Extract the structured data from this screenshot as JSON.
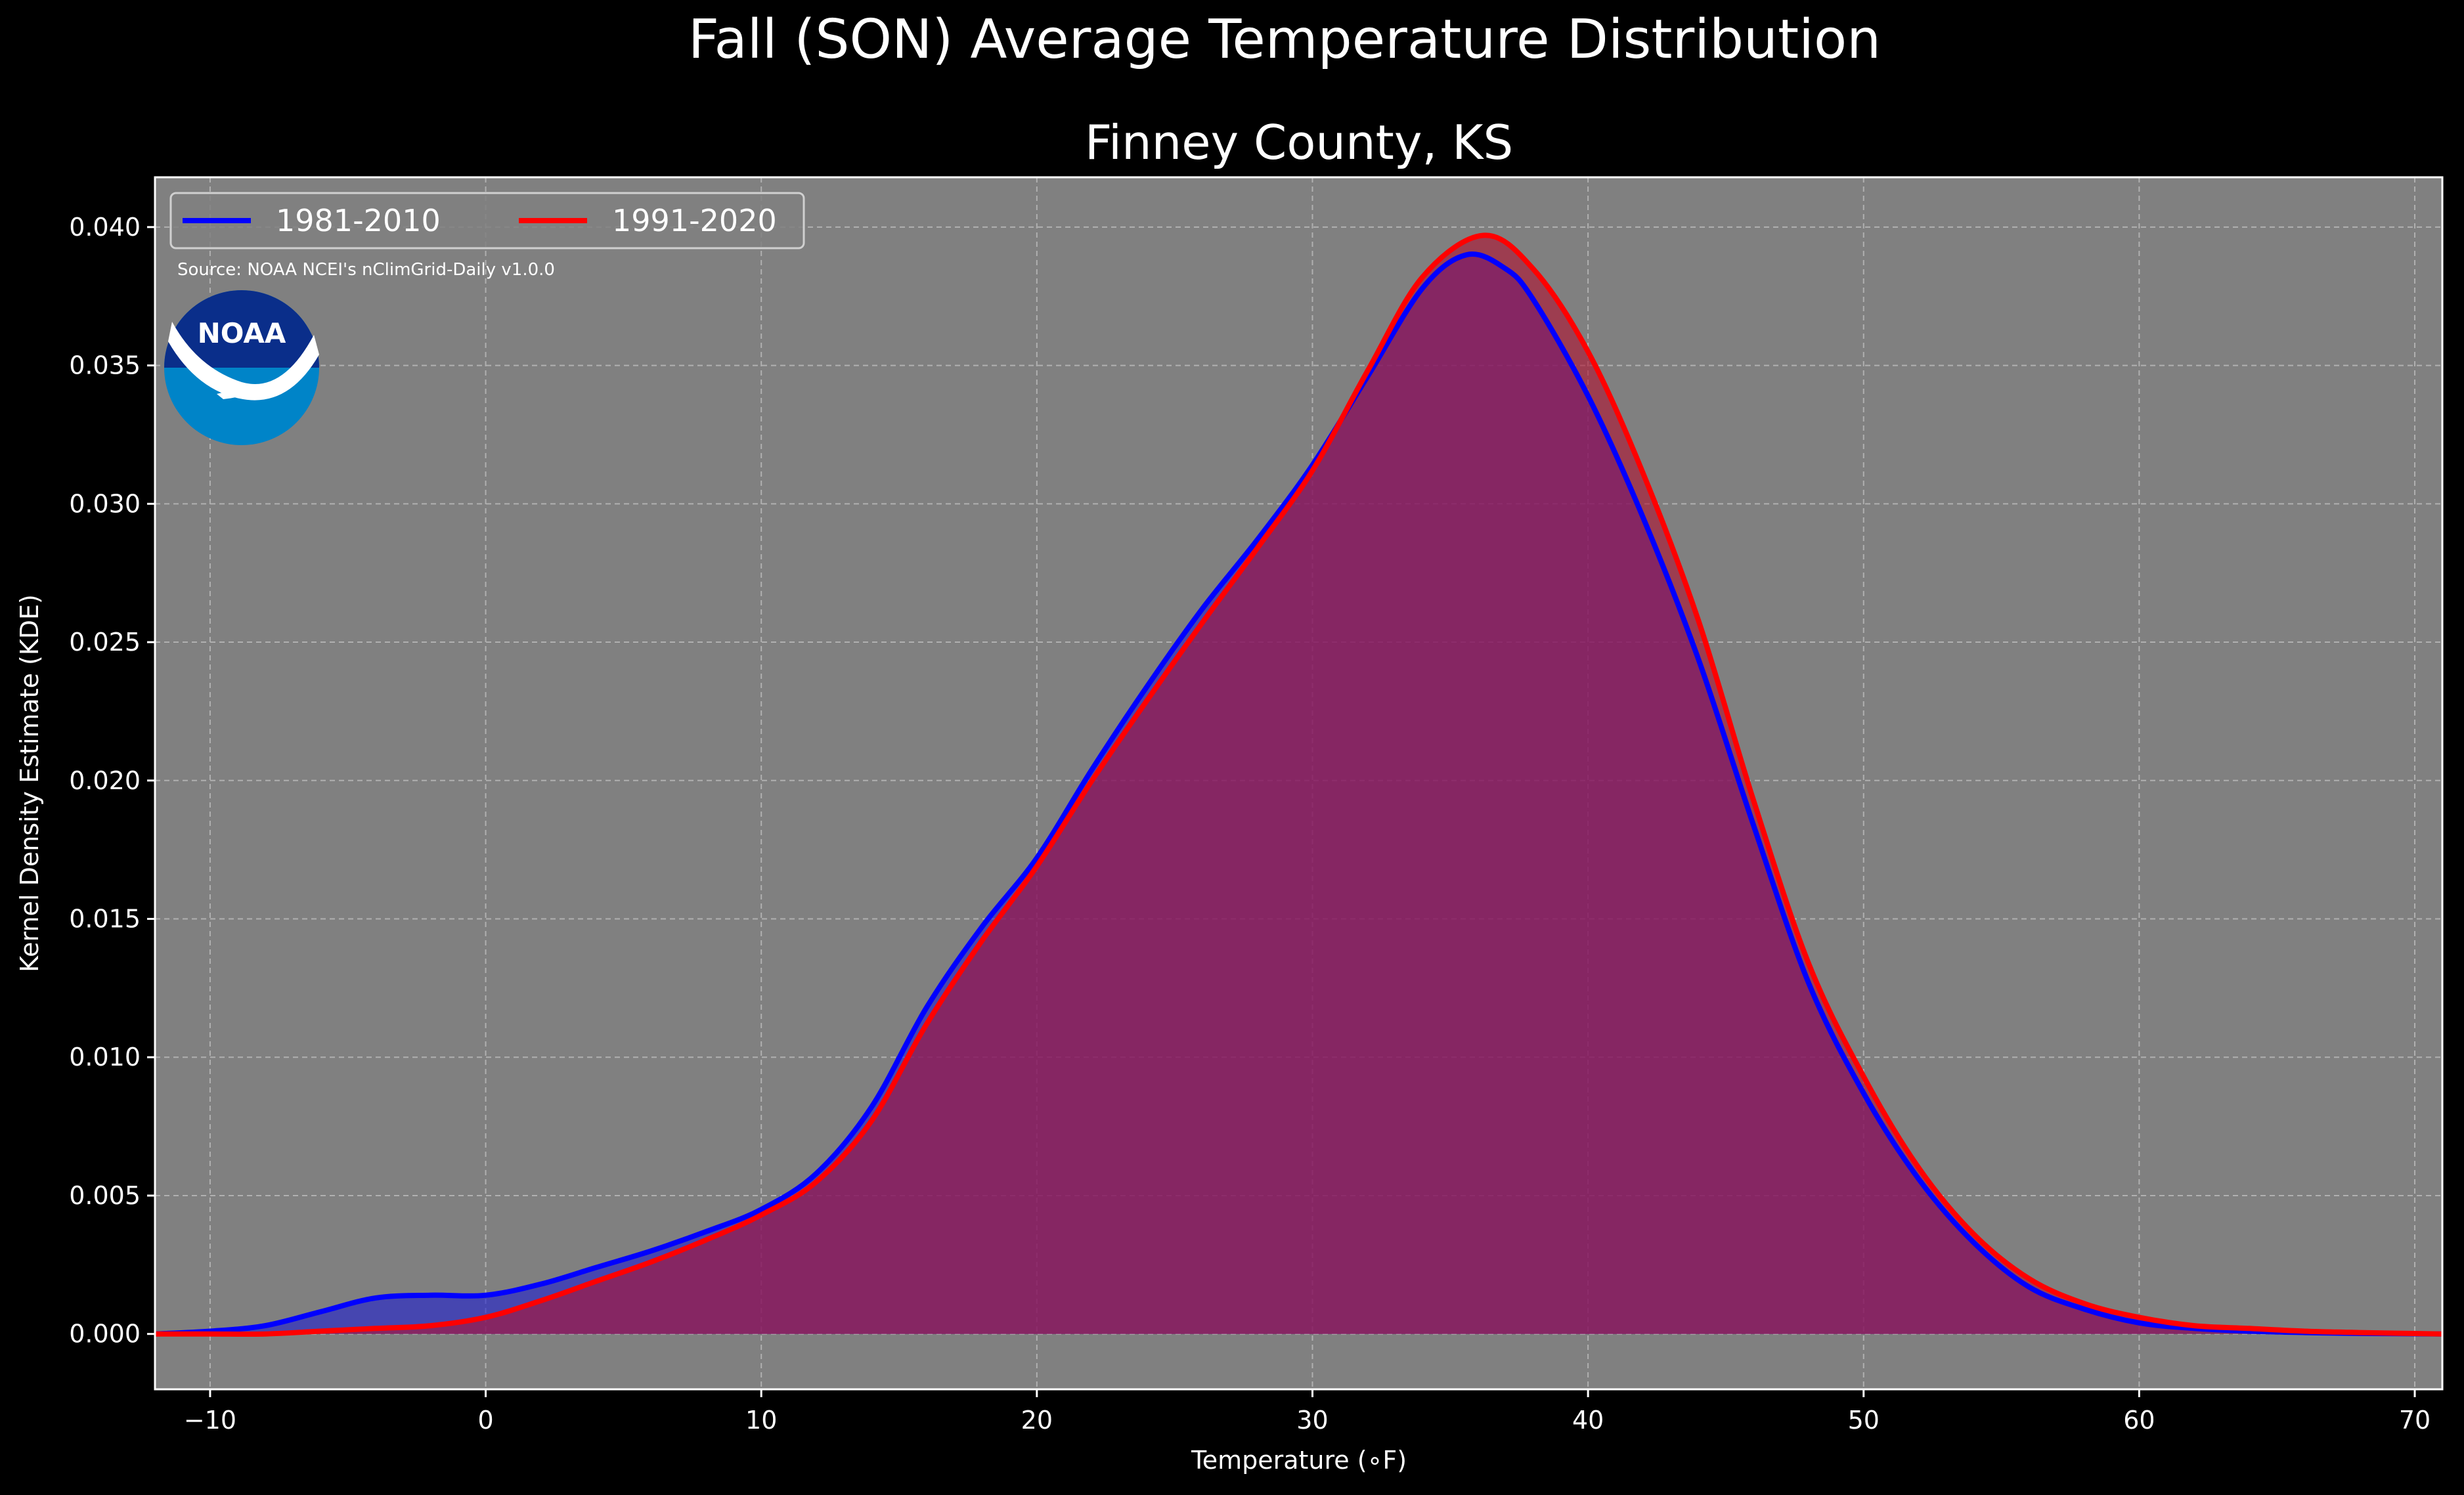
{
  "chart_data": {
    "type": "area",
    "title": "Fall (SON) Average Temperature Distribution",
    "subtitle": "Finney County, KS",
    "xlabel": "Temperature (∘F)",
    "ylabel": "Kernel Density Estimate (KDE)",
    "xlim": [
      -12,
      71
    ],
    "ylim": [
      -0.002,
      0.0418
    ],
    "x_ticks": [
      -10,
      0,
      10,
      20,
      30,
      40,
      50,
      60,
      70
    ],
    "x_tick_labels": [
      "−10",
      "0",
      "10",
      "20",
      "30",
      "40",
      "50",
      "60",
      "70"
    ],
    "y_ticks": [
      0.0,
      0.005,
      0.01,
      0.015,
      0.02,
      0.025,
      0.03,
      0.035,
      0.04
    ],
    "y_tick_labels": [
      "0.000",
      "0.005",
      "0.010",
      "0.015",
      "0.020",
      "0.025",
      "0.030",
      "0.035",
      "0.040"
    ],
    "grid": true,
    "legend_position": "top-left",
    "background_color": "#808080",
    "annotation": "Source: NOAA NCEI's nClimGrid-Daily v1.0.0",
    "logo_text": "NOAA",
    "series": [
      {
        "name": "1981-2010",
        "color": "#0000ff",
        "fill": "#2020d0",
        "x": [
          -12,
          -10,
          -8,
          -6,
          -4,
          -2,
          0,
          2,
          4,
          6,
          8,
          10,
          12,
          14,
          16,
          18,
          20,
          22,
          24,
          26,
          28,
          30,
          32,
          34,
          35.6,
          37,
          38,
          40,
          42,
          44,
          46,
          48,
          50,
          52,
          54,
          56,
          58,
          60,
          62,
          64,
          66,
          68,
          71
        ],
        "values": [
          0,
          0.0001,
          0.0003,
          0.0008,
          0.0013,
          0.0014,
          0.0014,
          0.0018,
          0.0024,
          0.003,
          0.0037,
          0.0045,
          0.0058,
          0.0082,
          0.0118,
          0.0147,
          0.0172,
          0.0204,
          0.0234,
          0.0262,
          0.0287,
          0.0314,
          0.0346,
          0.0378,
          0.039,
          0.0385,
          0.0374,
          0.0339,
          0.0295,
          0.0244,
          0.0184,
          0.0127,
          0.0087,
          0.0056,
          0.0033,
          0.0017,
          0.0009,
          0.0004,
          0.0002,
          0.0001,
          5e-05,
          2e-05,
          0
        ]
      },
      {
        "name": "1991-2020",
        "color": "#ff0000",
        "fill": "#b01030",
        "x": [
          -12,
          -10,
          -8,
          -6,
          -4,
          -2,
          0,
          2,
          4,
          6,
          8,
          10,
          12,
          14,
          16,
          18,
          20,
          22,
          24,
          26,
          28,
          30,
          32,
          34,
          36.2,
          38,
          40,
          42,
          44,
          46,
          48,
          50,
          52,
          54,
          56,
          58,
          60,
          62,
          64,
          66,
          68,
          71
        ],
        "values": [
          0,
          0,
          0,
          0.0001,
          0.0002,
          0.0003,
          0.0006,
          0.0012,
          0.0019,
          0.0026,
          0.0034,
          0.0043,
          0.0055,
          0.0077,
          0.0112,
          0.0142,
          0.0169,
          0.02,
          0.0229,
          0.0257,
          0.0284,
          0.0312,
          0.0348,
          0.0382,
          0.0397,
          0.0385,
          0.0355,
          0.0311,
          0.0258,
          0.0193,
          0.0134,
          0.0093,
          0.006,
          0.0036,
          0.002,
          0.0011,
          0.0006,
          0.0003,
          0.0002,
          0.0001,
          5e-05,
          0
        ]
      }
    ]
  }
}
